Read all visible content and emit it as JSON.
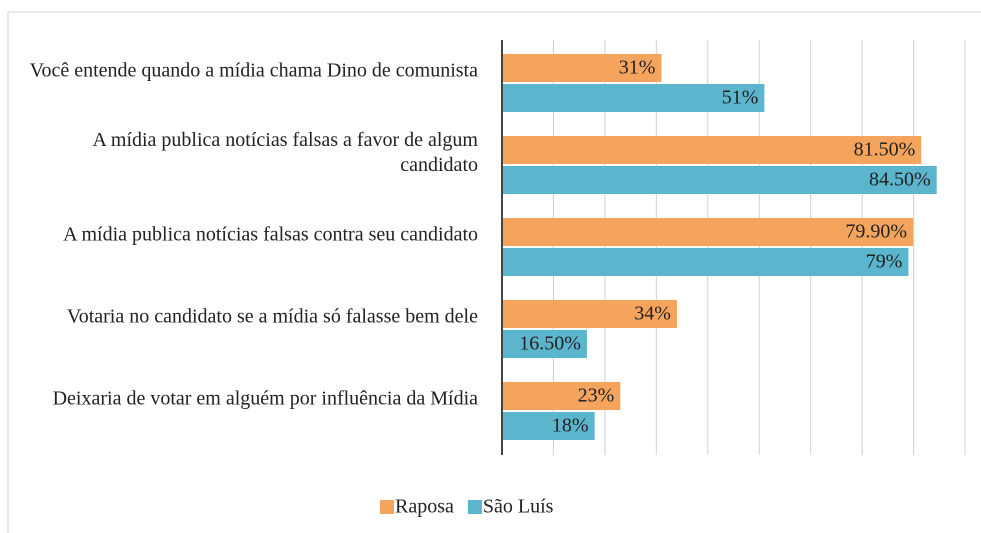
{
  "chart_data": {
    "type": "bar",
    "orientation": "horizontal",
    "categories": [
      "Você entende quando a mídia chama Dino de comunista",
      "A mídia publica notícias falsas a favor de algum candidato",
      "A mídia publica notícias falsas contra seu candidato",
      "Votaria no candidato se a mídia só falasse bem dele",
      "Deixaria de votar em alguém por influência da Mídia"
    ],
    "series": [
      {
        "name": "Raposa",
        "color": "#f5a45d",
        "values": [
          31,
          81.5,
          79.9,
          34,
          23
        ],
        "value_labels": [
          "31%",
          "81.50%",
          "79.90%",
          "34%",
          "23%"
        ]
      },
      {
        "name": "São Luís",
        "color": "#5bb5cc",
        "values": [
          51,
          84.5,
          79,
          16.5,
          18
        ],
        "value_labels": [
          "51%",
          "84.50%",
          "79%",
          "16.50%",
          "18%"
        ]
      }
    ],
    "xlim": [
      0,
      90
    ],
    "xticks": [
      0,
      10,
      20,
      30,
      40,
      50,
      60,
      70,
      80,
      90
    ],
    "grid": true,
    "legend": "bottom"
  }
}
